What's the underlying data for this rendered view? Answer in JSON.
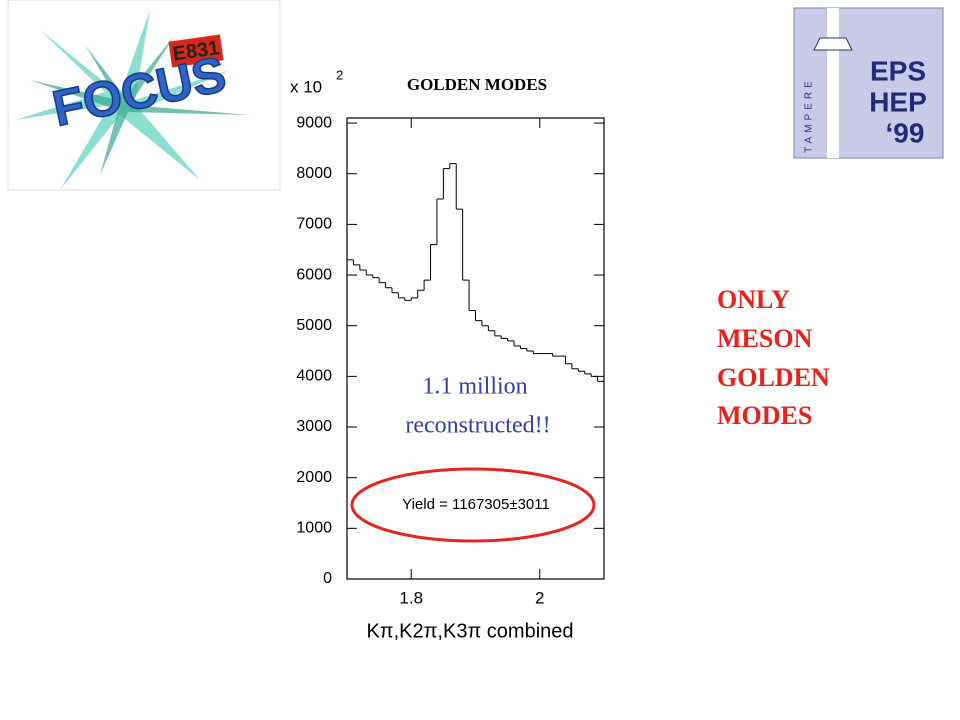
{
  "chart_data": {
    "type": "histogram",
    "title": "GOLDEN MODES",
    "multiplier": {
      "base": "x 10",
      "exponent": "2"
    },
    "x_label": "Kπ,K2π,K3π combined",
    "bins": [
      1.7,
      1.71,
      1.72,
      1.73,
      1.74,
      1.75,
      1.76,
      1.77,
      1.78,
      1.79,
      1.8,
      1.81,
      1.82,
      1.83,
      1.84,
      1.85,
      1.86,
      1.87,
      1.88,
      1.89,
      1.9,
      1.91,
      1.92,
      1.93,
      1.94,
      1.95,
      1.96,
      1.97,
      1.98,
      1.99,
      2.0,
      2.01,
      2.02,
      2.03,
      2.04,
      2.05,
      2.06,
      2.07,
      2.08,
      2.09,
      2.1
    ],
    "values": [
      6300,
      6200,
      6100,
      6000,
      5950,
      5850,
      5750,
      5650,
      5550,
      5500,
      5550,
      5700,
      5900,
      6600,
      7500,
      8100,
      8200,
      7300,
      5900,
      5300,
      5100,
      5000,
      4900,
      4800,
      4750,
      4700,
      4600,
      4550,
      4500,
      4450,
      4450,
      4450,
      4400,
      4400,
      4250,
      4150,
      4100,
      4050,
      4000,
      3900
    ],
    "color": "#000000",
    "xlim": [
      1.7,
      2.1
    ],
    "xticks": [
      1.8,
      2
    ],
    "ylim": [
      0,
      9100
    ],
    "yticks": [
      0,
      1000,
      2000,
      3000,
      4000,
      5000,
      6000,
      7000,
      8000,
      9000
    ],
    "annotation": [
      "1.1 million",
      "reconstructed!!"
    ],
    "fit_result": "Yield = 1167305±3011"
  },
  "slide": {
    "side_text": [
      "ONLY",
      "MESON",
      "GOLDEN",
      "MODES"
    ],
    "focus_logo": {
      "experiment": "E831",
      "name": "FOCUS"
    },
    "eps_logo": {
      "lines": [
        "EPS",
        "HEP",
        "‘99"
      ],
      "city": "TAMPERE"
    }
  }
}
